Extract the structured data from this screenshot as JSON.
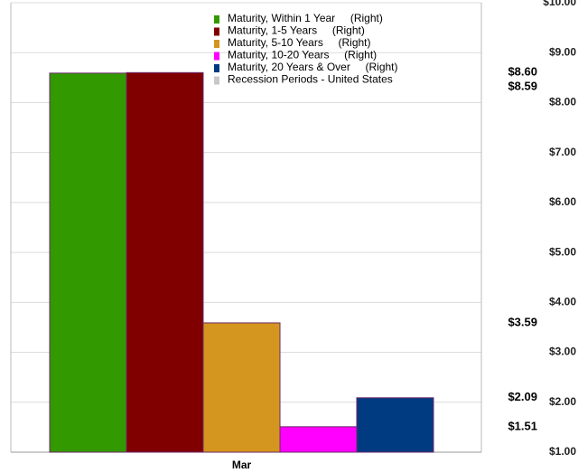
{
  "chart_data": {
    "type": "bar",
    "categories": [
      "Mar"
    ],
    "series": [
      {
        "name": "Maturity, Within 1 Year     (Right)",
        "color": "#339900",
        "values": [
          8.59
        ],
        "value_labels": [
          "$8.59"
        ]
      },
      {
        "name": "Maturity, 1-5 Years     (Right)",
        "color": "#800000",
        "values": [
          8.6
        ],
        "value_labels": [
          "$8.60"
        ]
      },
      {
        "name": "Maturity, 5-10 Years     (Right)",
        "color": "#d4961e",
        "values": [
          3.59
        ],
        "value_labels": [
          "$3.59"
        ]
      },
      {
        "name": "Maturity, 10-20 Years     (Right)",
        "color": "#ff00ff",
        "values": [
          1.51
        ],
        "value_labels": [
          "$1.51"
        ]
      },
      {
        "name": "Maturity, 20 Years & Over     (Right)",
        "color": "#003a80",
        "values": [
          2.09
        ],
        "value_labels": [
          "$2.09"
        ]
      },
      {
        "name": "Recession Periods - United States",
        "color": "#c8c8c8",
        "values": [
          null
        ]
      }
    ],
    "ylim": [
      1,
      10
    ],
    "yticks": [
      {
        "value": 1,
        "label": "$1.00"
      },
      {
        "value": 2,
        "label": "$2.00"
      },
      {
        "value": 3,
        "label": "$3.00"
      },
      {
        "value": 4,
        "label": "$4.00"
      },
      {
        "value": 5,
        "label": "$5.00"
      },
      {
        "value": 6,
        "label": "$6.00"
      },
      {
        "value": 7,
        "label": "$7.00"
      },
      {
        "value": 8,
        "label": "$8.00"
      },
      {
        "value": 9,
        "label": "$9.00"
      },
      {
        "value": 10,
        "label": "$10.00"
      }
    ],
    "grid": true,
    "y_axis_side": "right"
  }
}
